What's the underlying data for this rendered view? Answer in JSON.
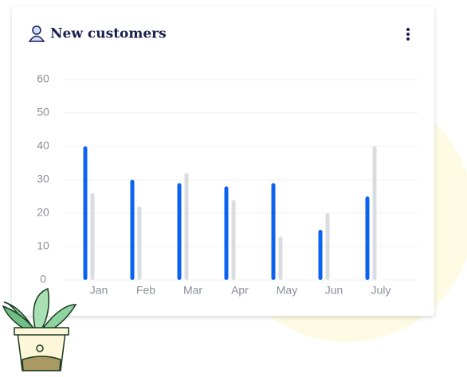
{
  "chart_data": {
    "type": "bar",
    "title": "New customers",
    "categories": [
      "Jan",
      "Feb",
      "Mar",
      "Apr",
      "May",
      "Jun",
      "July"
    ],
    "series": [
      {
        "color": "#0b63f0",
        "values": [
          40,
          30,
          29,
          28,
          29,
          15,
          25
        ]
      },
      {
        "color": "#d9dce1",
        "values": [
          26,
          22,
          32,
          24,
          13,
          20,
          40
        ]
      }
    ],
    "ylim": [
      0,
      60
    ],
    "yticks": [
      0,
      10,
      20,
      30,
      40,
      50,
      60
    ],
    "grid": true
  }
}
